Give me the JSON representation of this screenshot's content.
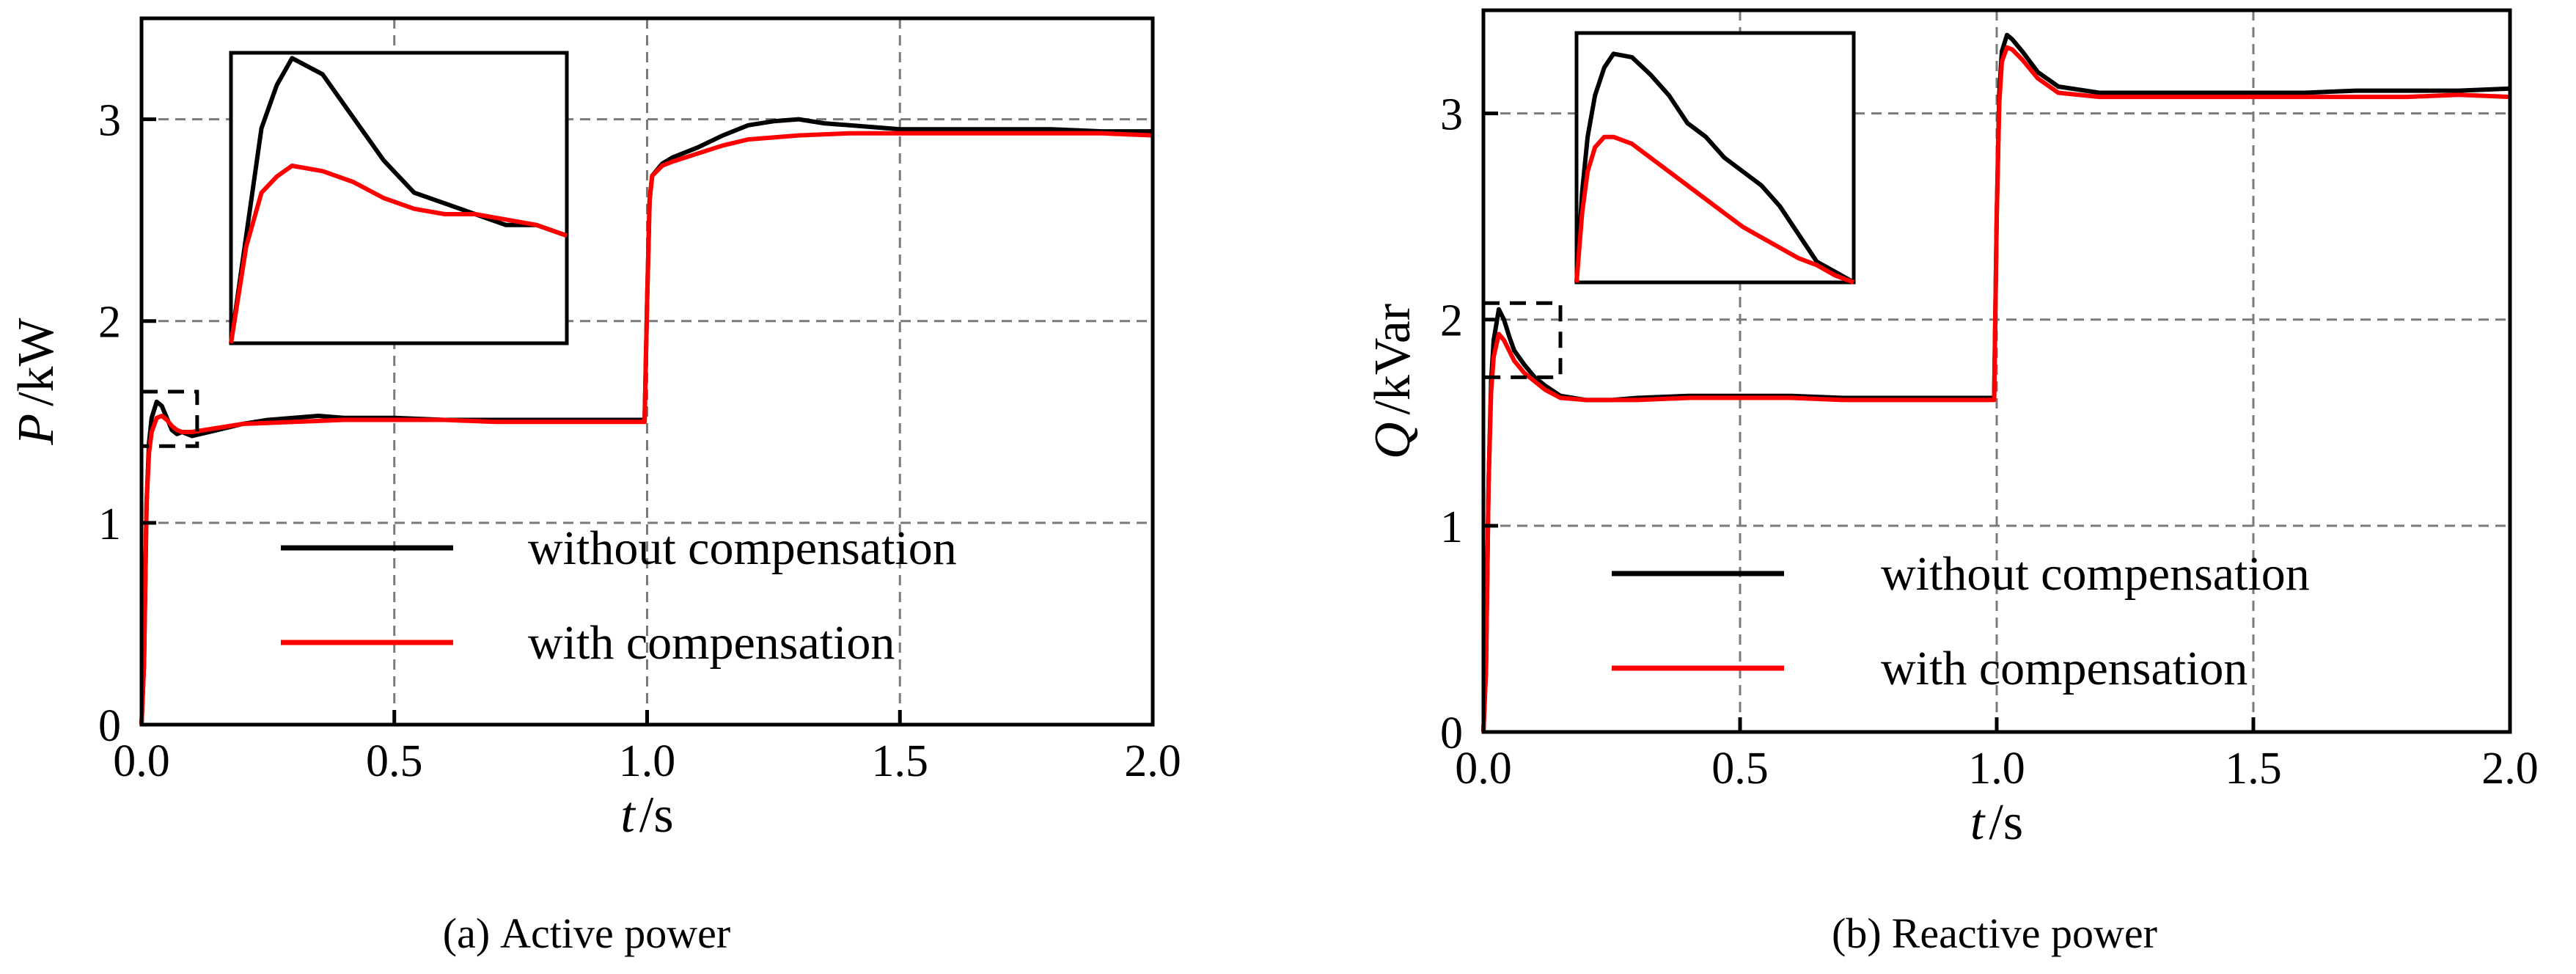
{
  "chart_data": [
    {
      "type": "line",
      "panel": "a",
      "caption_letter": "(a)",
      "caption_text": "Active power",
      "ylabel_var": "P",
      "ylabel_unit": "/kW",
      "xlabel_var": "t",
      "xlabel_unit": "/s",
      "xlim": [
        0,
        2
      ],
      "ylim": [
        0,
        3.5
      ],
      "xticks": [
        0,
        0.5,
        1,
        1.5,
        2
      ],
      "xtick_labels": [
        "0.0",
        "0.5",
        "1.0",
        "1.5",
        "2.0"
      ],
      "yticks": [
        0,
        1,
        2,
        3
      ],
      "ytick_labels": [
        "0",
        "1",
        "2",
        "3"
      ],
      "grid": true,
      "legend": {
        "position": "center",
        "entries": [
          "without compensation",
          "with compensation"
        ]
      },
      "zoom_region": {
        "x": [
          0.0,
          0.11
        ],
        "y": [
          1.38,
          1.65
        ]
      },
      "series": [
        {
          "name": "without compensation",
          "color": "#000000",
          "points": [
            [
              0,
              0
            ],
            [
              0.005,
              0.3
            ],
            [
              0.01,
              1.1
            ],
            [
              0.015,
              1.4
            ],
            [
              0.02,
              1.52
            ],
            [
              0.03,
              1.6
            ],
            [
              0.04,
              1.58
            ],
            [
              0.05,
              1.52
            ],
            [
              0.06,
              1.46
            ],
            [
              0.07,
              1.44
            ],
            [
              0.08,
              1.45
            ],
            [
              0.1,
              1.43
            ],
            [
              0.15,
              1.46
            ],
            [
              0.2,
              1.49
            ],
            [
              0.25,
              1.51
            ],
            [
              0.3,
              1.52
            ],
            [
              0.35,
              1.53
            ],
            [
              0.4,
              1.52
            ],
            [
              0.45,
              1.52
            ],
            [
              0.5,
              1.52
            ],
            [
              0.6,
              1.51
            ],
            [
              0.7,
              1.51
            ],
            [
              0.8,
              1.51
            ],
            [
              0.9,
              1.51
            ],
            [
              0.98,
              1.51
            ],
            [
              0.995,
              1.51
            ],
            [
              1.0,
              2.1
            ],
            [
              1.005,
              2.6
            ],
            [
              1.01,
              2.72
            ],
            [
              1.03,
              2.78
            ],
            [
              1.05,
              2.81
            ],
            [
              1.1,
              2.86
            ],
            [
              1.15,
              2.92
            ],
            [
              1.2,
              2.97
            ],
            [
              1.25,
              2.99
            ],
            [
              1.3,
              3.0
            ],
            [
              1.35,
              2.98
            ],
            [
              1.4,
              2.97
            ],
            [
              1.5,
              2.95
            ],
            [
              1.6,
              2.95
            ],
            [
              1.7,
              2.95
            ],
            [
              1.8,
              2.95
            ],
            [
              1.9,
              2.94
            ],
            [
              2.0,
              2.94
            ]
          ]
        },
        {
          "name": "with compensation",
          "color": "#ff0000",
          "points": [
            [
              0,
              0
            ],
            [
              0.005,
              0.3
            ],
            [
              0.01,
              1.1
            ],
            [
              0.015,
              1.35
            ],
            [
              0.02,
              1.45
            ],
            [
              0.03,
              1.52
            ],
            [
              0.04,
              1.53
            ],
            [
              0.05,
              1.51
            ],
            [
              0.06,
              1.48
            ],
            [
              0.07,
              1.46
            ],
            [
              0.08,
              1.45
            ],
            [
              0.1,
              1.45
            ],
            [
              0.15,
              1.47
            ],
            [
              0.2,
              1.49
            ],
            [
              0.3,
              1.5
            ],
            [
              0.4,
              1.51
            ],
            [
              0.5,
              1.51
            ],
            [
              0.6,
              1.51
            ],
            [
              0.7,
              1.5
            ],
            [
              0.8,
              1.5
            ],
            [
              0.9,
              1.5
            ],
            [
              0.98,
              1.5
            ],
            [
              0.995,
              1.5
            ],
            [
              1.0,
              2.1
            ],
            [
              1.005,
              2.6
            ],
            [
              1.01,
              2.72
            ],
            [
              1.03,
              2.77
            ],
            [
              1.05,
              2.79
            ],
            [
              1.1,
              2.83
            ],
            [
              1.15,
              2.87
            ],
            [
              1.2,
              2.9
            ],
            [
              1.3,
              2.92
            ],
            [
              1.4,
              2.93
            ],
            [
              1.5,
              2.93
            ],
            [
              1.6,
              2.93
            ],
            [
              1.7,
              2.93
            ],
            [
              1.8,
              2.93
            ],
            [
              1.9,
              2.93
            ],
            [
              2.0,
              2.92
            ]
          ]
        }
      ],
      "inset_series": [
        {
          "name": "without compensation",
          "color": "#000000",
          "points": [
            [
              0.0,
              1.38
            ],
            [
              0.005,
              1.48
            ],
            [
              0.01,
              1.58
            ],
            [
              0.015,
              1.62
            ],
            [
              0.02,
              1.645
            ],
            [
              0.03,
              1.63
            ],
            [
              0.04,
              1.59
            ],
            [
              0.05,
              1.55
            ],
            [
              0.06,
              1.52
            ],
            [
              0.07,
              1.51
            ],
            [
              0.08,
              1.5
            ],
            [
              0.09,
              1.49
            ],
            [
              0.1,
              1.49
            ],
            [
              0.11,
              1.48
            ]
          ]
        },
        {
          "name": "with compensation",
          "color": "#ff0000",
          "points": [
            [
              0.0,
              1.38
            ],
            [
              0.005,
              1.47
            ],
            [
              0.01,
              1.52
            ],
            [
              0.015,
              1.535
            ],
            [
              0.02,
              1.545
            ],
            [
              0.03,
              1.54
            ],
            [
              0.04,
              1.53
            ],
            [
              0.05,
              1.515
            ],
            [
              0.06,
              1.505
            ],
            [
              0.07,
              1.5
            ],
            [
              0.08,
              1.5
            ],
            [
              0.09,
              1.495
            ],
            [
              0.1,
              1.49
            ],
            [
              0.11,
              1.48
            ]
          ]
        }
      ]
    },
    {
      "type": "line",
      "panel": "b",
      "caption_letter": "(b)",
      "caption_text": "Reactive power",
      "ylabel_var": "Q",
      "ylabel_unit": "/kVar",
      "xlabel_var": "t",
      "xlabel_unit": "/s",
      "xlim": [
        0,
        2
      ],
      "ylim": [
        0,
        3.5
      ],
      "xticks": [
        0,
        0.5,
        1,
        1.5,
        2
      ],
      "xtick_labels": [
        "0.0",
        "0.5",
        "1.0",
        "1.5",
        "2.0"
      ],
      "yticks": [
        0,
        1,
        2,
        3
      ],
      "ytick_labels": [
        "0",
        "1",
        "2",
        "3"
      ],
      "grid": true,
      "legend": {
        "position": "center",
        "entries": [
          "without compensation",
          "with compensation"
        ]
      },
      "zoom_region": {
        "x": [
          0.0,
          0.15
        ],
        "y": [
          1.72,
          2.08
        ]
      },
      "series": [
        {
          "name": "without compensation",
          "color": "#000000",
          "points": [
            [
              0,
              0
            ],
            [
              0.005,
              0.3
            ],
            [
              0.01,
              1.2
            ],
            [
              0.015,
              1.7
            ],
            [
              0.02,
              1.9
            ],
            [
              0.03,
              2.05
            ],
            [
              0.04,
              2.0
            ],
            [
              0.05,
              1.92
            ],
            [
              0.06,
              1.85
            ],
            [
              0.08,
              1.78
            ],
            [
              0.1,
              1.72
            ],
            [
              0.12,
              1.68
            ],
            [
              0.15,
              1.63
            ],
            [
              0.2,
              1.61
            ],
            [
              0.25,
              1.61
            ],
            [
              0.3,
              1.62
            ],
            [
              0.4,
              1.63
            ],
            [
              0.5,
              1.63
            ],
            [
              0.6,
              1.63
            ],
            [
              0.7,
              1.62
            ],
            [
              0.8,
              1.62
            ],
            [
              0.9,
              1.62
            ],
            [
              0.98,
              1.62
            ],
            [
              0.995,
              1.62
            ],
            [
              1.0,
              2.5
            ],
            [
              1.005,
              3.1
            ],
            [
              1.01,
              3.3
            ],
            [
              1.02,
              3.38
            ],
            [
              1.03,
              3.36
            ],
            [
              1.05,
              3.3
            ],
            [
              1.08,
              3.2
            ],
            [
              1.12,
              3.13
            ],
            [
              1.2,
              3.1
            ],
            [
              1.3,
              3.1
            ],
            [
              1.4,
              3.1
            ],
            [
              1.5,
              3.1
            ],
            [
              1.6,
              3.1
            ],
            [
              1.7,
              3.11
            ],
            [
              1.8,
              3.11
            ],
            [
              1.9,
              3.11
            ],
            [
              2.0,
              3.12
            ]
          ]
        },
        {
          "name": "with compensation",
          "color": "#ff0000",
          "points": [
            [
              0,
              0
            ],
            [
              0.005,
              0.3
            ],
            [
              0.01,
              1.2
            ],
            [
              0.015,
              1.65
            ],
            [
              0.02,
              1.82
            ],
            [
              0.03,
              1.93
            ],
            [
              0.04,
              1.9
            ],
            [
              0.05,
              1.85
            ],
            [
              0.06,
              1.8
            ],
            [
              0.08,
              1.74
            ],
            [
              0.1,
              1.7
            ],
            [
              0.12,
              1.66
            ],
            [
              0.15,
              1.62
            ],
            [
              0.2,
              1.61
            ],
            [
              0.3,
              1.61
            ],
            [
              0.4,
              1.62
            ],
            [
              0.5,
              1.62
            ],
            [
              0.6,
              1.62
            ],
            [
              0.7,
              1.61
            ],
            [
              0.8,
              1.61
            ],
            [
              0.9,
              1.61
            ],
            [
              0.98,
              1.61
            ],
            [
              0.995,
              1.61
            ],
            [
              1.0,
              2.5
            ],
            [
              1.005,
              3.05
            ],
            [
              1.01,
              3.25
            ],
            [
              1.02,
              3.32
            ],
            [
              1.03,
              3.31
            ],
            [
              1.05,
              3.26
            ],
            [
              1.08,
              3.17
            ],
            [
              1.12,
              3.1
            ],
            [
              1.2,
              3.08
            ],
            [
              1.3,
              3.08
            ],
            [
              1.4,
              3.08
            ],
            [
              1.5,
              3.08
            ],
            [
              1.6,
              3.08
            ],
            [
              1.7,
              3.08
            ],
            [
              1.8,
              3.08
            ],
            [
              1.9,
              3.09
            ],
            [
              2.0,
              3.08
            ]
          ]
        }
      ],
      "inset_series": [
        {
          "name": "without compensation",
          "color": "#000000",
          "points": [
            [
              0.0,
              1.72
            ],
            [
              0.003,
              1.85
            ],
            [
              0.006,
              1.93
            ],
            [
              0.01,
              1.99
            ],
            [
              0.015,
              2.03
            ],
            [
              0.02,
              2.05
            ],
            [
              0.03,
              2.045
            ],
            [
              0.04,
              2.02
            ],
            [
              0.05,
              1.99
            ],
            [
              0.06,
              1.95
            ],
            [
              0.07,
              1.93
            ],
            [
              0.08,
              1.9
            ],
            [
              0.09,
              1.88
            ],
            [
              0.1,
              1.86
            ],
            [
              0.11,
              1.83
            ],
            [
              0.12,
              1.79
            ],
            [
              0.13,
              1.75
            ],
            [
              0.14,
              1.735
            ],
            [
              0.15,
              1.72
            ]
          ]
        },
        {
          "name": "with compensation",
          "color": "#ff0000",
          "points": [
            [
              0.0,
              1.72
            ],
            [
              0.003,
              1.82
            ],
            [
              0.006,
              1.88
            ],
            [
              0.01,
              1.915
            ],
            [
              0.015,
              1.93
            ],
            [
              0.02,
              1.93
            ],
            [
              0.03,
              1.92
            ],
            [
              0.04,
              1.9
            ],
            [
              0.05,
              1.88
            ],
            [
              0.06,
              1.86
            ],
            [
              0.07,
              1.84
            ],
            [
              0.08,
              1.82
            ],
            [
              0.09,
              1.8
            ],
            [
              0.1,
              1.785
            ],
            [
              0.11,
              1.77
            ],
            [
              0.12,
              1.755
            ],
            [
              0.13,
              1.745
            ],
            [
              0.14,
              1.73
            ],
            [
              0.15,
              1.72
            ]
          ]
        }
      ]
    }
  ]
}
